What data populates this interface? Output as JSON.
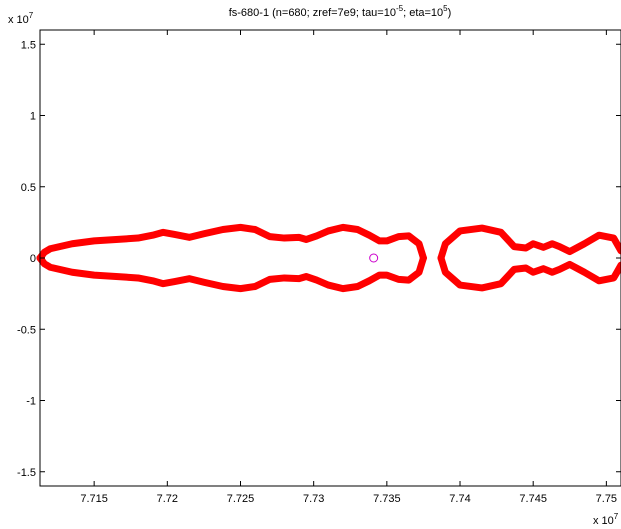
{
  "chart_data": {
    "type": "scatter",
    "title": {
      "prefix": "fs-680-1 (n=680; zref=7e9; tau=10",
      "tau_exponent": "-5",
      "middle": "; eta=10",
      "eta_exponent": "5",
      "suffix": ")"
    },
    "xlabel": "",
    "ylabel": "",
    "x_multiplier": {
      "base": "x 10",
      "exponent": "7"
    },
    "y_multiplier": {
      "base": "x 10",
      "exponent": "7"
    },
    "xlim": [
      7.7113,
      7.751
    ],
    "ylim": [
      -1.6,
      1.6
    ],
    "x_ticks": [
      {
        "value": 7.715,
        "label": "7.715"
      },
      {
        "value": 7.72,
        "label": "7.72"
      },
      {
        "value": 7.725,
        "label": "7.725"
      },
      {
        "value": 7.73,
        "label": "7.73"
      },
      {
        "value": 7.735,
        "label": "7.735"
      },
      {
        "value": 7.74,
        "label": "7.74"
      },
      {
        "value": 7.745,
        "label": "7.745"
      },
      {
        "value": 7.75,
        "label": "7.75"
      }
    ],
    "y_ticks": [
      {
        "value": 1.5,
        "label": "1.5"
      },
      {
        "value": 1,
        "label": "1"
      },
      {
        "value": 0.5,
        "label": "0.5"
      },
      {
        "value": 0,
        "label": "0"
      },
      {
        "value": -0.5,
        "label": "-0.5"
      },
      {
        "value": -1,
        "label": "-1"
      },
      {
        "value": -1.5,
        "label": "-1.5"
      }
    ],
    "grid": false,
    "legend": "none",
    "series": [
      {
        "color": "#ff0000",
        "marker": "dot",
        "contours": [
          {
            "upper": [
              [
                7.7113,
                0.0
              ],
              [
                7.7116,
                0.04
              ],
              [
                7.712,
                0.065
              ],
              [
                7.7135,
                0.1
              ],
              [
                7.715,
                0.12
              ],
              [
                7.7165,
                0.13
              ],
              [
                7.718,
                0.14
              ],
              [
                7.719,
                0.16
              ],
              [
                7.7197,
                0.18
              ],
              [
                7.7205,
                0.165
              ],
              [
                7.7215,
                0.145
              ],
              [
                7.7225,
                0.17
              ],
              [
                7.7238,
                0.2
              ],
              [
                7.725,
                0.215
              ],
              [
                7.726,
                0.2
              ],
              [
                7.727,
                0.15
              ],
              [
                7.728,
                0.14
              ],
              [
                7.729,
                0.145
              ],
              [
                7.7295,
                0.13
              ],
              [
                7.7302,
                0.155
              ],
              [
                7.731,
                0.19
              ],
              [
                7.732,
                0.215
              ],
              [
                7.733,
                0.2
              ],
              [
                7.7338,
                0.16
              ],
              [
                7.7345,
                0.12
              ],
              [
                7.735,
                0.12
              ],
              [
                7.7358,
                0.15
              ],
              [
                7.7365,
                0.155
              ],
              [
                7.7372,
                0.1
              ],
              [
                7.7375,
                0.0
              ]
            ],
            "lower": [
              [
                7.7113,
                0.0
              ],
              [
                7.7116,
                -0.04
              ],
              [
                7.712,
                -0.065
              ],
              [
                7.7135,
                -0.1
              ],
              [
                7.715,
                -0.12
              ],
              [
                7.7165,
                -0.13
              ],
              [
                7.718,
                -0.14
              ],
              [
                7.719,
                -0.16
              ],
              [
                7.7197,
                -0.18
              ],
              [
                7.7205,
                -0.165
              ],
              [
                7.7215,
                -0.145
              ],
              [
                7.7225,
                -0.17
              ],
              [
                7.7238,
                -0.2
              ],
              [
                7.725,
                -0.215
              ],
              [
                7.726,
                -0.2
              ],
              [
                7.727,
                -0.15
              ],
              [
                7.728,
                -0.14
              ],
              [
                7.729,
                -0.145
              ],
              [
                7.7295,
                -0.13
              ],
              [
                7.7302,
                -0.155
              ],
              [
                7.731,
                -0.19
              ],
              [
                7.732,
                -0.215
              ],
              [
                7.733,
                -0.2
              ],
              [
                7.7338,
                -0.16
              ],
              [
                7.7345,
                -0.12
              ],
              [
                7.735,
                -0.12
              ],
              [
                7.7358,
                -0.15
              ],
              [
                7.7365,
                -0.155
              ],
              [
                7.7372,
                -0.1
              ],
              [
                7.7375,
                0.0
              ]
            ]
          },
          {
            "upper": [
              [
                7.7387,
                0.0
              ],
              [
                7.739,
                0.1
              ],
              [
                7.74,
                0.19
              ],
              [
                7.7415,
                0.21
              ],
              [
                7.7428,
                0.18
              ],
              [
                7.7437,
                0.08
              ],
              [
                7.7445,
                0.07
              ],
              [
                7.745,
                0.1
              ],
              [
                7.7457,
                0.075
              ],
              [
                7.7463,
                0.1
              ],
              [
                7.7468,
                0.08
              ],
              [
                7.7475,
                0.045
              ],
              [
                7.7485,
                0.1
              ],
              [
                7.7495,
                0.16
              ],
              [
                7.7505,
                0.14
              ],
              [
                7.751,
                0.05
              ]
            ],
            "lower": [
              [
                7.7387,
                0.0
              ],
              [
                7.739,
                -0.1
              ],
              [
                7.74,
                -0.19
              ],
              [
                7.7415,
                -0.21
              ],
              [
                7.7428,
                -0.18
              ],
              [
                7.7437,
                -0.08
              ],
              [
                7.7445,
                -0.07
              ],
              [
                7.745,
                -0.1
              ],
              [
                7.7457,
                -0.075
              ],
              [
                7.7463,
                -0.1
              ],
              [
                7.7468,
                -0.08
              ],
              [
                7.7475,
                -0.045
              ],
              [
                7.7485,
                -0.1
              ],
              [
                7.7495,
                -0.16
              ],
              [
                7.7505,
                -0.14
              ],
              [
                7.751,
                -0.05
              ]
            ]
          }
        ]
      },
      {
        "color": "#cc00cc",
        "marker": "circle",
        "points": [
          [
            7.7341,
            0.0
          ]
        ]
      }
    ]
  }
}
